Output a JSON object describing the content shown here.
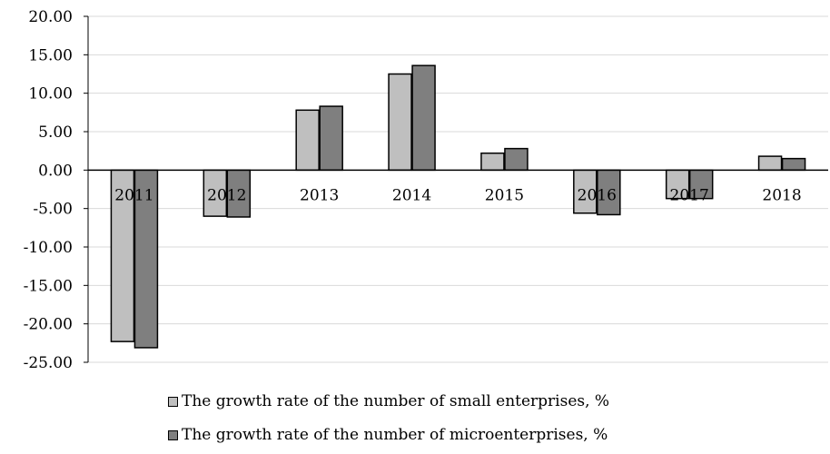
{
  "chart_data": {
    "type": "bar",
    "categories": [
      "2011",
      "2012",
      "2013",
      "2014",
      "2015",
      "2016",
      "2017",
      "2018"
    ],
    "series": [
      {
        "name": "The growth rate of the number of small enterprises, %",
        "color": "#bfbfbf",
        "values": [
          -22.3,
          -6.0,
          7.8,
          12.5,
          2.2,
          -5.6,
          -3.7,
          1.8
        ]
      },
      {
        "name": "The growth rate of the number of microenterprises, %",
        "color": "#7f7f7f",
        "values": [
          -23.1,
          -6.1,
          8.3,
          13.6,
          2.8,
          -5.8,
          -3.7,
          1.5
        ]
      }
    ],
    "yticks": [
      "20.00",
      "15.00",
      "10.00",
      "5.00",
      "0.00",
      "-5.00",
      "-10.00",
      "-15.00",
      "-20.00",
      "-25.00"
    ],
    "ylim": [
      -25,
      20
    ],
    "grid": true,
    "legend_position": "bottom",
    "title": "",
    "xlabel": "",
    "ylabel": ""
  }
}
